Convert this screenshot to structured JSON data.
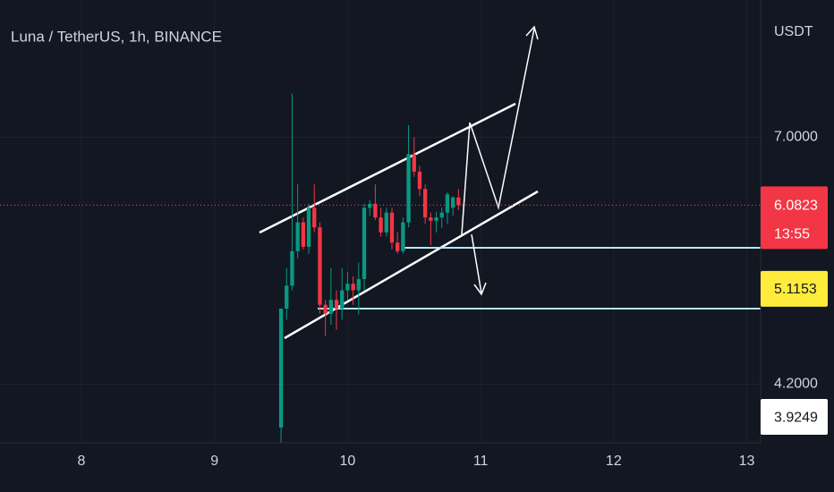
{
  "chart_data": {
    "type": "candlestick",
    "title": "Luna / TetherUS, 1h, BINANCE",
    "y_axis_label": "USDT",
    "x": [
      9.5,
      9.5417,
      9.5833,
      9.625,
      9.6667,
      9.7083,
      9.75,
      9.7917,
      9.8333,
      9.875,
      9.9167,
      9.9583,
      10.0,
      10.0417,
      10.0833,
      10.125,
      10.1667,
      10.2083,
      10.25,
      10.2917,
      10.3333,
      10.375,
      10.4167,
      10.4583,
      10.5,
      10.5417,
      10.5833,
      10.625,
      10.6667,
      10.7083,
      10.75,
      10.7917,
      10.8333
    ],
    "open": [
      3.84,
      4.91,
      5.15,
      5.53,
      5.87,
      5.58,
      6.05,
      5.81,
      4.95,
      4.86,
      5.0,
      4.91,
      5.1,
      5.17,
      5.1,
      5.22,
      6.05,
      6.1,
      5.93,
      5.75,
      5.99,
      5.63,
      5.53,
      5.87,
      6.76,
      6.52,
      6.29,
      5.93,
      5.89,
      5.93,
      5.99,
      6.05,
      6.18
    ],
    "high": [
      4.91,
      5.34,
      7.66,
      6.35,
      5.93,
      6.1,
      6.35,
      5.87,
      5.0,
      5.34,
      5.1,
      5.34,
      5.3,
      5.25,
      5.4,
      6.1,
      6.15,
      6.35,
      6.05,
      6.05,
      6.05,
      5.75,
      5.93,
      7.18,
      7.0,
      6.6,
      6.35,
      5.99,
      6.0,
      6.05,
      6.25,
      6.2,
      6.29
    ],
    "low": [
      3.72,
      4.8,
      5.1,
      5.45,
      5.55,
      5.5,
      5.75,
      4.86,
      4.64,
      4.75,
      4.7,
      4.8,
      5.0,
      4.95,
      4.85,
      5.1,
      5.95,
      5.9,
      5.7,
      5.7,
      5.55,
      5.5,
      5.5,
      5.81,
      6.45,
      6.2,
      5.85,
      5.6,
      5.75,
      5.8,
      5.85,
      5.95,
      6.02
    ],
    "close": [
      4.91,
      5.15,
      5.53,
      5.87,
      5.58,
      6.05,
      5.81,
      4.95,
      4.86,
      5.0,
      4.91,
      5.1,
      5.17,
      5.1,
      5.22,
      6.05,
      6.1,
      5.93,
      5.75,
      5.99,
      5.63,
      5.53,
      5.87,
      6.76,
      6.52,
      6.29,
      5.93,
      5.89,
      5.93,
      5.99,
      6.22,
      6.18,
      6.08
    ],
    "up_color": "#089981",
    "down_color": "#f23645",
    "xlim": [
      7.388,
      13.104
    ],
    "ylim": [
      3.72,
      9.3
    ],
    "log_scale": true,
    "grid": true,
    "xticks": [
      8,
      9,
      10,
      11,
      12,
      13
    ],
    "yticks": [
      {
        "value": 7,
        "label": "7.0000"
      },
      {
        "value": 4.2,
        "label": "4.2000"
      }
    ],
    "price_labels": [
      {
        "value": 6.0823,
        "color": "#f23645",
        "countdown": "13:55"
      },
      {
        "value": 5.1153,
        "color": "#ffeb3b"
      },
      {
        "value": 3.9249,
        "color": "#ffffff"
      }
    ]
  }
}
